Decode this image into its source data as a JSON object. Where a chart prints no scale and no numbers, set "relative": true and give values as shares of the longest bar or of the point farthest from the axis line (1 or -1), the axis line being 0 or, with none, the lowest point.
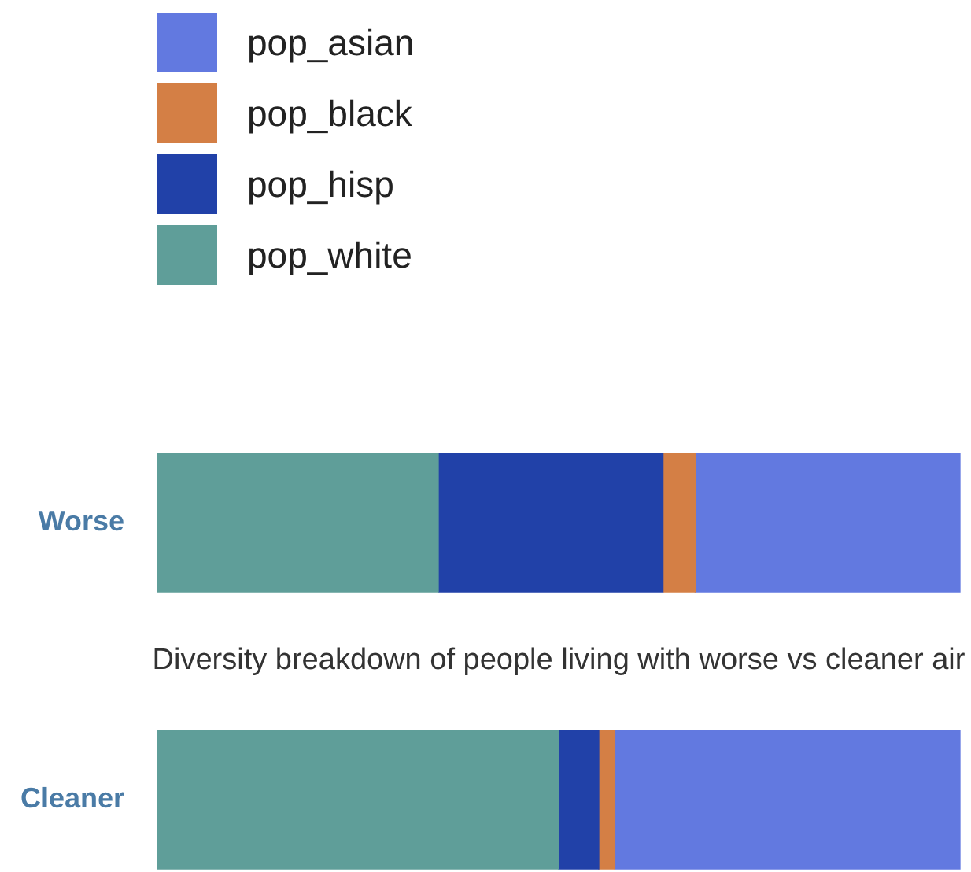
{
  "chart_data": {
    "type": "bar",
    "orientation": "horizontal",
    "stacked": true,
    "relative": true,
    "legend": "top left",
    "categories": [
      "Worse",
      "Cleaner"
    ],
    "series": [
      {
        "name": "pop_white",
        "color": "#5f9e99",
        "values": [
          0.35,
          0.5
        ]
      },
      {
        "name": "pop_hisp",
        "color": "#2141a8",
        "values": [
          0.28,
          0.05
        ]
      },
      {
        "name": "pop_black",
        "color": "#d47f45",
        "values": [
          0.04,
          0.02
        ]
      },
      {
        "name": "pop_asian",
        "color": "#6279e0",
        "values": [
          0.33,
          0.43
        ]
      }
    ],
    "annotations": [
      "Diversity breakdown of people living with worse vs cleaner air"
    ]
  }
}
